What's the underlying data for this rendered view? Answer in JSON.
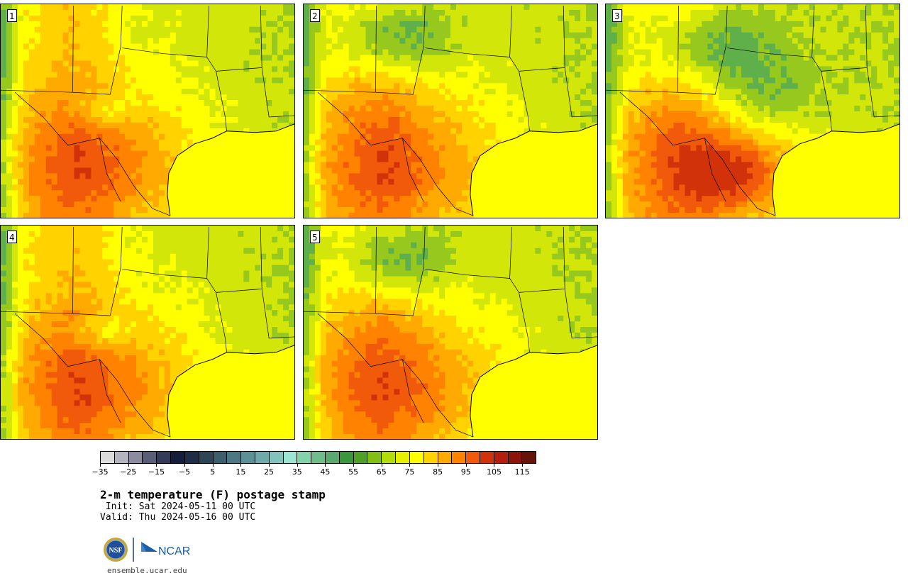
{
  "panels": [
    {
      "label": "1",
      "seed": 11,
      "variant": "hot-west"
    },
    {
      "label": "2",
      "seed": 23,
      "variant": "green-north"
    },
    {
      "label": "3",
      "seed": 37,
      "variant": "green-center"
    },
    {
      "label": "4",
      "seed": 41,
      "variant": "hot-west"
    },
    {
      "label": "5",
      "seed": 53,
      "variant": "green-north"
    }
  ],
  "colorbar": {
    "colors": [
      "#dcdcdc",
      "#b4b4c0",
      "#8c8ca0",
      "#5a5f78",
      "#323c5a",
      "#141e3c",
      "#1e2d46",
      "#2d4655",
      "#3c5f6e",
      "#4b7882",
      "#5a9196",
      "#6eaaaa",
      "#82c3be",
      "#9be6d2",
      "#82d2aa",
      "#6ebe8c",
      "#5aaa6e",
      "#3c963c",
      "#50a028",
      "#82be14",
      "#b4dc0a",
      "#e6f000",
      "#ffff00",
      "#ffd200",
      "#ffaa00",
      "#ff8200",
      "#f05a0a",
      "#d2320a",
      "#b41e0a",
      "#8c140a",
      "#641408"
    ],
    "tick_labels": [
      "−35",
      "−25",
      "−15",
      "−5",
      "5",
      "15",
      "25",
      "35",
      "45",
      "55",
      "65",
      "75",
      "85",
      "95",
      "105",
      "115"
    ]
  },
  "title": "2-m temperature (F) postage stamp",
  "init": " Init: Sat 2024-05-11 00 UTC",
  "valid": "Valid: Thu 2024-05-16 00 UTC",
  "logos": {
    "nsf": "NSF",
    "ncar": "NCAR"
  },
  "website": "ensemble.ucar.edu"
}
